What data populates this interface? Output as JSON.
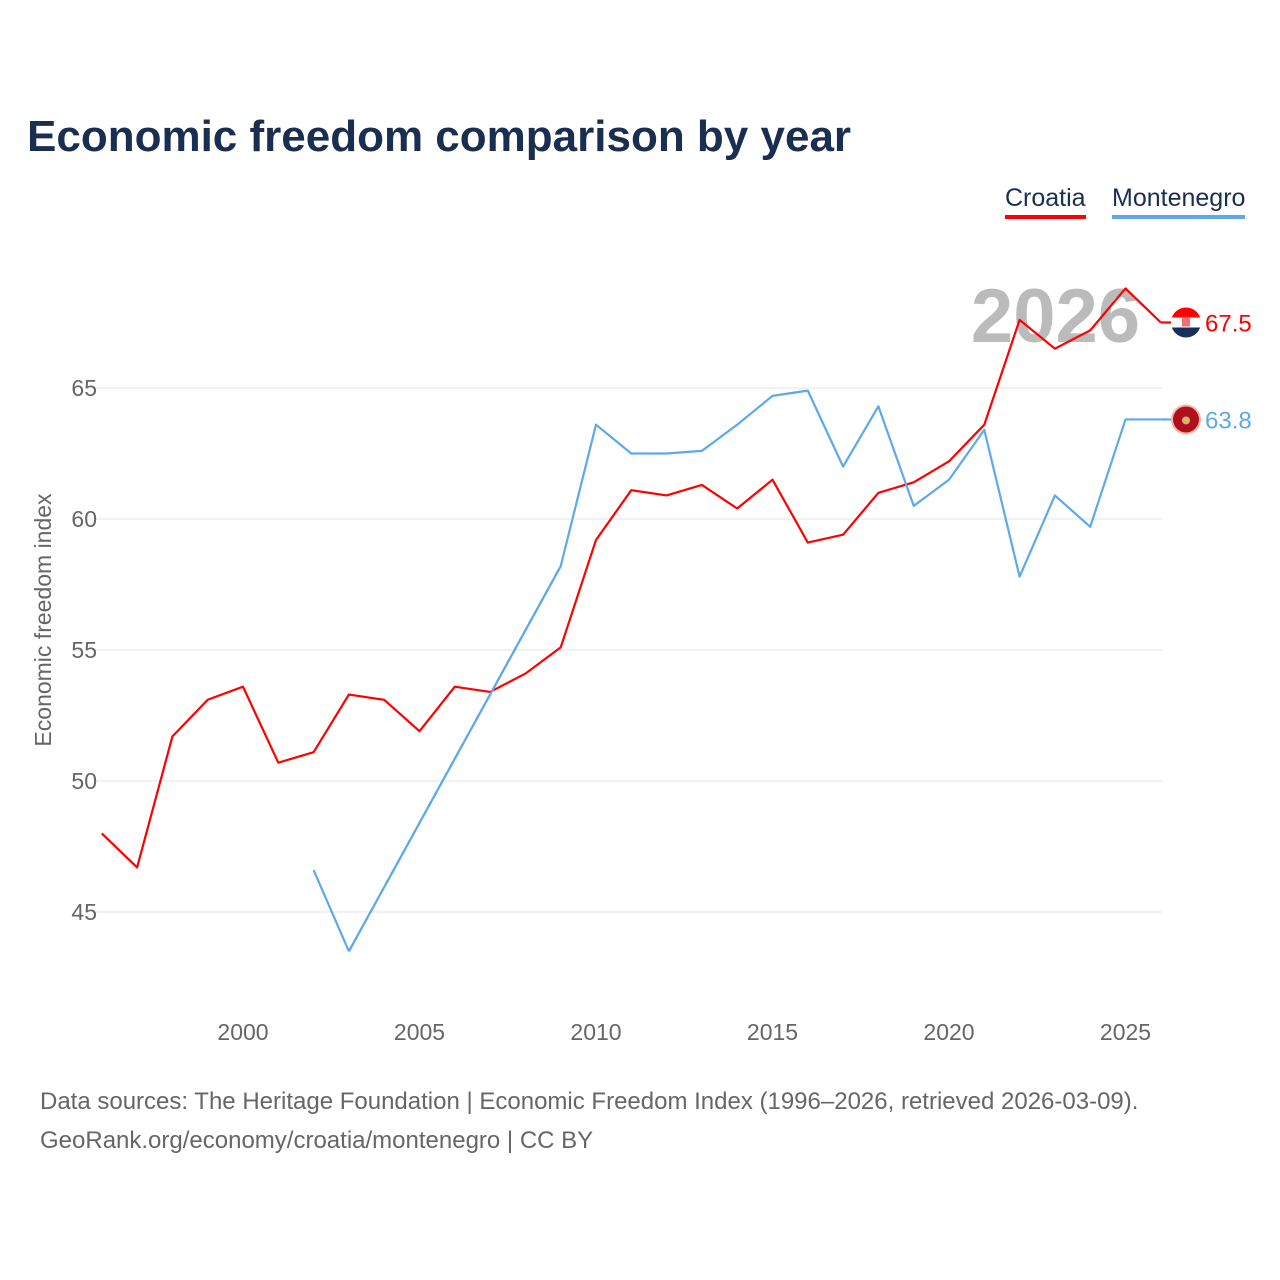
{
  "chart_data": {
    "type": "line",
    "title": "Economic freedom comparison by year",
    "xlabel": "",
    "ylabel": "Economic freedom index",
    "xlim": [
      1996,
      2026
    ],
    "ylim": [
      41.5,
      70
    ],
    "yticks": [
      45,
      50,
      55,
      60,
      65
    ],
    "xticks": [
      2000,
      2005,
      2010,
      2015,
      2020,
      2025
    ],
    "grid": true,
    "legend_position": "top-right",
    "highlight_year_label": "2026",
    "x": [
      1996,
      1997,
      1998,
      1999,
      2000,
      2001,
      2002,
      2003,
      2004,
      2005,
      2006,
      2007,
      2008,
      2009,
      2010,
      2011,
      2012,
      2013,
      2014,
      2015,
      2016,
      2017,
      2018,
      2019,
      2020,
      2021,
      2022,
      2023,
      2024,
      2025,
      2026
    ],
    "series": [
      {
        "name": "Croatia",
        "color": "#ff0000",
        "end_label": "67.5",
        "values": [
          48.0,
          46.7,
          51.7,
          53.1,
          53.6,
          50.7,
          51.1,
          53.3,
          53.1,
          51.9,
          53.6,
          53.4,
          54.1,
          55.1,
          59.2,
          61.1,
          60.9,
          61.3,
          60.4,
          61.5,
          59.1,
          59.4,
          61.0,
          61.4,
          62.2,
          63.6,
          67.6,
          66.5,
          67.2,
          68.8,
          67.5
        ]
      },
      {
        "name": "Montenegro",
        "color": "#5ea8ec",
        "end_label": "63.8",
        "values": [
          null,
          null,
          null,
          null,
          null,
          null,
          46.6,
          43.5,
          null,
          null,
          null,
          null,
          null,
          58.2,
          63.6,
          62.5,
          62.5,
          62.6,
          63.6,
          64.7,
          64.9,
          62.0,
          64.3,
          60.5,
          61.5,
          63.4,
          57.8,
          60.9,
          59.7,
          63.8,
          63.8
        ]
      }
    ]
  },
  "footer": {
    "line1": "Data sources: The Heritage Foundation | Economic Freedom Index (1996–2026, retrieved 2026-03-09).",
    "line2": "GeoRank.org/economy/croatia/montenegro | CC BY"
  }
}
